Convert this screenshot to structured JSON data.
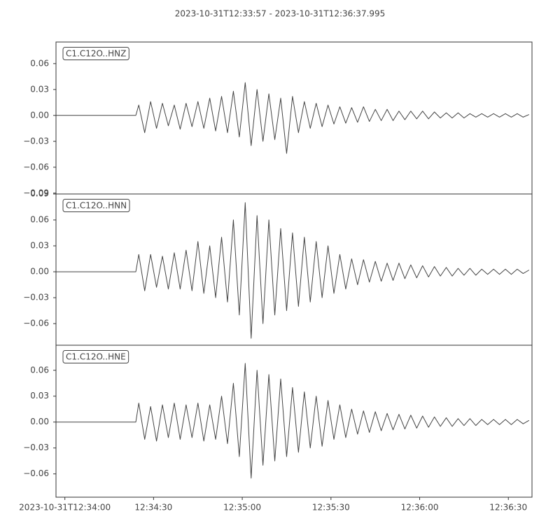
{
  "title": "2023-10-31T12:33:57  -  2023-10-31T12:36:37.995",
  "chart_data": [
    {
      "type": "line",
      "label": "C1.C12O..HNZ",
      "color": "#444444",
      "xlim": [
        "2023-10-31T12:33:57",
        "2023-10-31T12:36:37.995"
      ],
      "ylim": [
        -0.091,
        0.085
      ],
      "yticks": [
        {
          "value": -0.09,
          "label": "−0.09"
        },
        {
          "value": -0.06,
          "label": "−0.06"
        },
        {
          "value": -0.03,
          "label": "−0.03"
        },
        {
          "value": 0,
          "label": "0.00"
        },
        0.03,
        0.06
      ],
      "x": [
        "12:33:57",
        "12:34:24",
        "12:34:25",
        "12:34:27",
        "12:34:29",
        "12:34:31",
        "12:34:33",
        "12:34:35",
        "12:34:37",
        "12:34:39",
        "12:34:41",
        "12:34:43",
        "12:34:45",
        "12:34:47",
        "12:34:49",
        "12:34:51",
        "12:34:53",
        "12:34:55",
        "12:34:57",
        "12:34:59",
        "12:35:01",
        "12:35:03",
        "12:35:05",
        "12:35:07",
        "12:35:09",
        "12:35:11",
        "12:35:13",
        "12:35:15",
        "12:35:17",
        "12:35:19",
        "12:35:21",
        "12:35:23",
        "12:35:25",
        "12:35:27",
        "12:35:29",
        "12:35:31",
        "12:35:33",
        "12:35:35",
        "12:35:37",
        "12:35:39",
        "12:35:41",
        "12:35:43",
        "12:35:45",
        "12:35:47",
        "12:35:49",
        "12:35:51",
        "12:35:53",
        "12:35:55",
        "12:35:57",
        "12:35:59",
        "12:36:01",
        "12:36:03",
        "12:36:05",
        "12:36:07",
        "12:36:09",
        "12:36:11",
        "12:36:13",
        "12:36:15",
        "12:36:17",
        "12:36:19",
        "12:36:21",
        "12:36:23",
        "12:36:25",
        "12:36:27",
        "12:36:29",
        "12:36:31",
        "12:36:33",
        "12:36:35",
        "12:36:37"
      ],
      "values": [
        0,
        0,
        0.012,
        -0.02,
        0.016,
        -0.015,
        0.014,
        -0.012,
        0.012,
        -0.016,
        0.014,
        -0.013,
        0.016,
        -0.015,
        0.02,
        -0.018,
        0.022,
        -0.02,
        0.028,
        -0.025,
        0.038,
        -0.035,
        0.03,
        -0.03,
        0.025,
        -0.028,
        0.02,
        -0.044,
        0.022,
        -0.02,
        0.016,
        -0.015,
        0.014,
        -0.013,
        0.012,
        -0.01,
        0.01,
        -0.009,
        0.009,
        -0.008,
        0.01,
        -0.007,
        0.007,
        -0.006,
        0.007,
        -0.006,
        0.005,
        -0.005,
        0.005,
        -0.004,
        0.005,
        -0.004,
        0.004,
        -0.003,
        0.003,
        -0.003,
        0.003,
        -0.003,
        0.002,
        -0.002,
        0.002,
        -0.002,
        0.002,
        -0.002,
        0.002,
        -0.002,
        0.002,
        -0.002,
        0.001
      ]
    },
    {
      "type": "line",
      "label": "C1.C12O..HNN",
      "color": "#444444",
      "xlim": [
        "2023-10-31T12:33:57",
        "2023-10-31T12:36:37.995"
      ],
      "ylim": [
        -0.085,
        0.09
      ],
      "yticks": [
        {
          "value": -0.06,
          "label": "−0.06"
        },
        {
          "value": -0.03,
          "label": "−0.03"
        },
        {
          "value": 0,
          "label": "0.00"
        },
        0.03,
        0.06,
        0.09
      ],
      "x": [
        "12:33:57",
        "12:34:24",
        "12:34:25",
        "12:34:27",
        "12:34:29",
        "12:34:31",
        "12:34:33",
        "12:34:35",
        "12:34:37",
        "12:34:39",
        "12:34:41",
        "12:34:43",
        "12:34:45",
        "12:34:47",
        "12:34:49",
        "12:34:51",
        "12:34:53",
        "12:34:55",
        "12:34:57",
        "12:34:59",
        "12:35:01",
        "12:35:03",
        "12:35:05",
        "12:35:07",
        "12:35:09",
        "12:35:11",
        "12:35:13",
        "12:35:15",
        "12:35:17",
        "12:35:19",
        "12:35:21",
        "12:35:23",
        "12:35:25",
        "12:35:27",
        "12:35:29",
        "12:35:31",
        "12:35:33",
        "12:35:35",
        "12:35:37",
        "12:35:39",
        "12:35:41",
        "12:35:43",
        "12:35:45",
        "12:35:47",
        "12:35:49",
        "12:35:51",
        "12:35:53",
        "12:35:55",
        "12:35:57",
        "12:35:59",
        "12:36:01",
        "12:36:03",
        "12:36:05",
        "12:36:07",
        "12:36:09",
        "12:36:11",
        "12:36:13",
        "12:36:15",
        "12:36:17",
        "12:36:19",
        "12:36:21",
        "12:36:23",
        "12:36:25",
        "12:36:27",
        "12:36:29",
        "12:36:31",
        "12:36:33",
        "12:36:35",
        "12:36:37"
      ],
      "values": [
        0,
        0,
        0.02,
        -0.022,
        0.02,
        -0.018,
        0.018,
        -0.02,
        0.022,
        -0.02,
        0.025,
        -0.022,
        0.035,
        -0.025,
        0.03,
        -0.03,
        0.04,
        -0.035,
        0.06,
        -0.05,
        0.08,
        -0.077,
        0.065,
        -0.06,
        0.06,
        -0.05,
        0.05,
        -0.045,
        0.045,
        -0.04,
        0.04,
        -0.035,
        0.035,
        -0.03,
        0.03,
        -0.025,
        0.02,
        -0.02,
        0.015,
        -0.015,
        0.014,
        -0.012,
        0.012,
        -0.011,
        0.01,
        -0.01,
        0.01,
        -0.008,
        0.008,
        -0.007,
        0.007,
        -0.006,
        0.006,
        -0.005,
        0.005,
        -0.005,
        0.004,
        -0.004,
        0.004,
        -0.004,
        0.003,
        -0.003,
        0.003,
        -0.003,
        0.003,
        -0.003,
        0.003,
        -0.002,
        0.002
      ]
    },
    {
      "type": "line",
      "label": "C1.C12O..HNE",
      "color": "#444444",
      "xlim": [
        "2023-10-31T12:33:57",
        "2023-10-31T12:36:37.995"
      ],
      "ylim": [
        -0.087,
        0.089
      ],
      "yticks": [
        {
          "value": -0.06,
          "label": "−0.06"
        },
        {
          "value": -0.03,
          "label": "−0.03"
        },
        {
          "value": 0,
          "label": "0.00"
        },
        0.03,
        0.06
      ],
      "xticks": [
        {
          "value": "12:34:00",
          "label": "2023-10-31T12:34:00"
        },
        "12:34:30",
        "12:35:00",
        "12:35:30",
        "12:36:00",
        "12:36:30"
      ],
      "x": [
        "12:33:57",
        "12:34:24",
        "12:34:25",
        "12:34:27",
        "12:34:29",
        "12:34:31",
        "12:34:33",
        "12:34:35",
        "12:34:37",
        "12:34:39",
        "12:34:41",
        "12:34:43",
        "12:34:45",
        "12:34:47",
        "12:34:49",
        "12:34:51",
        "12:34:53",
        "12:34:55",
        "12:34:57",
        "12:34:59",
        "12:35:01",
        "12:35:03",
        "12:35:05",
        "12:35:07",
        "12:35:09",
        "12:35:11",
        "12:35:13",
        "12:35:15",
        "12:35:17",
        "12:35:19",
        "12:35:21",
        "12:35:23",
        "12:35:25",
        "12:35:27",
        "12:35:29",
        "12:35:31",
        "12:35:33",
        "12:35:35",
        "12:35:37",
        "12:35:39",
        "12:35:41",
        "12:35:43",
        "12:35:45",
        "12:35:47",
        "12:35:49",
        "12:35:51",
        "12:35:53",
        "12:35:55",
        "12:35:57",
        "12:35:59",
        "12:36:01",
        "12:36:03",
        "12:36:05",
        "12:36:07",
        "12:36:09",
        "12:36:11",
        "12:36:13",
        "12:36:15",
        "12:36:17",
        "12:36:19",
        "12:36:21",
        "12:36:23",
        "12:36:25",
        "12:36:27",
        "12:36:29",
        "12:36:31",
        "12:36:33",
        "12:36:35",
        "12:36:37"
      ],
      "values": [
        0,
        0,
        0.022,
        -0.02,
        0.018,
        -0.022,
        0.02,
        -0.018,
        0.022,
        -0.02,
        0.02,
        -0.018,
        0.022,
        -0.022,
        0.02,
        -0.02,
        0.03,
        -0.025,
        0.045,
        -0.04,
        0.068,
        -0.065,
        0.06,
        -0.05,
        0.055,
        -0.045,
        0.05,
        -0.04,
        0.04,
        -0.035,
        0.035,
        -0.03,
        0.03,
        -0.028,
        0.025,
        -0.02,
        0.02,
        -0.018,
        0.015,
        -0.014,
        0.013,
        -0.012,
        0.012,
        -0.01,
        0.01,
        -0.009,
        0.009,
        -0.008,
        0.008,
        -0.007,
        0.007,
        -0.006,
        0.006,
        -0.005,
        0.005,
        -0.005,
        0.004,
        -0.004,
        0.004,
        -0.004,
        0.003,
        -0.003,
        0.003,
        -0.003,
        0.003,
        -0.003,
        0.003,
        -0.002,
        0.002
      ]
    }
  ]
}
